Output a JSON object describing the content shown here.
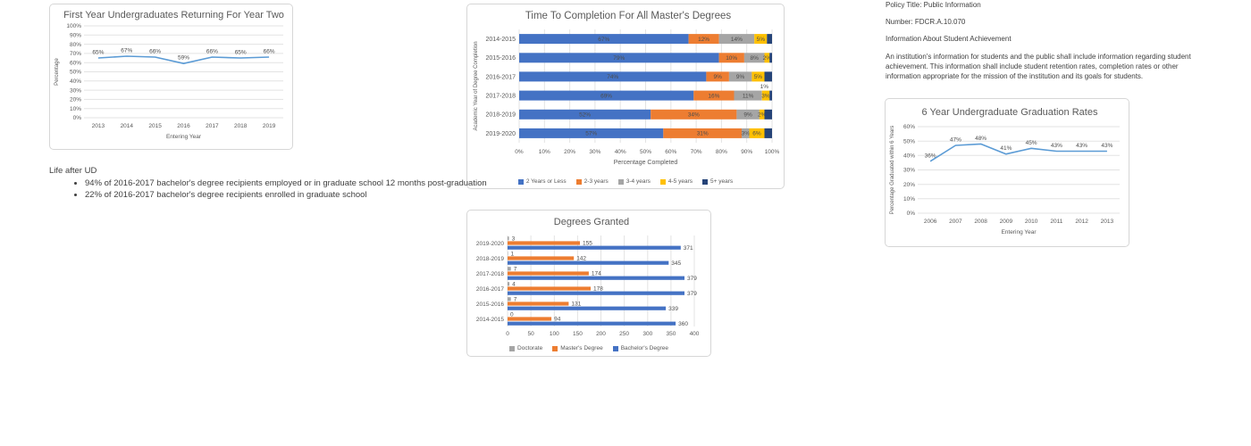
{
  "policy": {
    "title_line": "Policy Title: Public Information",
    "number_line": "Number: FDCR.A.10.070",
    "subject_line": "Information About Student Achievement",
    "paragraph": "An institution's information for students and the public shall include information regarding student achievement. This information shall include student retention rates, completion rates or other information appropriate for the mission of the institution and its goals for students."
  },
  "life_after": {
    "heading": "Life after UD",
    "bullets": [
      "94% of 2016-2017 bachelor's degree recipients employed or in graduate school 12 months post-graduation",
      "22% of 2016-2017 bachelor's degree recipients enrolled in graduate school"
    ]
  },
  "colors": {
    "line_blue": "#5B9BD5",
    "bar_blue": "#4472C4",
    "bar_orange": "#ED7D31",
    "bar_gray": "#A5A5A5",
    "bar_yellow": "#FFC000",
    "bar_navy": "#264478",
    "chart_text": "#595959",
    "border": "#d6d6d6"
  },
  "chart_data": [
    {
      "id": "retention",
      "type": "line",
      "title": "First Year Undergraduates Returning For Year Two",
      "xlabel": "Entering Year",
      "ylabel": "Percentage",
      "categories": [
        "2013",
        "2014",
        "2015",
        "2016",
        "2017",
        "2018",
        "2019"
      ],
      "values": [
        65,
        67,
        66,
        59,
        66,
        65,
        66
      ],
      "ylim": [
        0,
        100
      ],
      "ytick_step": 10,
      "unit": "%",
      "line_color": "#5B9BD5",
      "grid": true,
      "data_labels": true
    },
    {
      "id": "completion",
      "type": "stacked-bar-horizontal",
      "title": "Time To Completion For All Master's Degrees",
      "xlabel": "Percentage Completed",
      "ylabel": "Academic Year of Degree Completion",
      "categories": [
        "2014-2015",
        "2015-2016",
        "2016-2017",
        "2017-2018",
        "2018-2019",
        "2019-2020"
      ],
      "series": [
        {
          "name": "2 Years or Less",
          "color": "#4472C4",
          "values": [
            67,
            79,
            74,
            69,
            52,
            57
          ],
          "show_labels": true
        },
        {
          "name": "2-3 years",
          "color": "#ED7D31",
          "values": [
            12,
            10,
            9,
            16,
            34,
            31
          ],
          "show_labels": true
        },
        {
          "name": "3-4 years",
          "color": "#A5A5A5",
          "values": [
            14,
            8,
            9,
            11,
            9,
            3
          ],
          "show_labels": true
        },
        {
          "name": "4-5 years",
          "color": "#FFC000",
          "values": [
            5,
            2,
            5,
            3,
            2,
            6
          ],
          "show_labels": true
        },
        {
          "name": "5+ years",
          "color": "#264478",
          "values": [
            2,
            1,
            3,
            1,
            3,
            3
          ],
          "show_labels": false
        }
      ],
      "xlim": [
        0,
        100
      ],
      "xtick_step": 10,
      "unit": "%",
      "legend_position": "bottom",
      "grid": true,
      "annotation": {
        "text": "1%",
        "category": "2017-2018"
      }
    },
    {
      "id": "gradrates",
      "type": "line",
      "title": "6 Year Undergraduate Graduation Rates",
      "xlabel": "Entering Year",
      "ylabel": "Percentage Graduated within 6 Years",
      "categories": [
        "2006",
        "2007",
        "2008",
        "2009",
        "2010",
        "2011",
        "2012",
        "2013"
      ],
      "values": [
        36,
        47,
        48,
        41,
        45,
        43,
        43,
        43
      ],
      "ylim": [
        0,
        60
      ],
      "ytick_step": 10,
      "unit": "%",
      "line_color": "#5B9BD5",
      "grid": true,
      "data_labels": true
    },
    {
      "id": "degrees",
      "type": "grouped-bar-horizontal",
      "title": "Degrees Granted",
      "xlabel": "",
      "categories": [
        "2019-2020",
        "2018-2019",
        "2017-2018",
        "2016-2017",
        "2015-2016",
        "2014-2015"
      ],
      "series": [
        {
          "name": "Doctorate",
          "color": "#A5A5A5",
          "values": [
            3,
            1,
            7,
            4,
            7,
            0
          ]
        },
        {
          "name": "Master's Degree",
          "color": "#ED7D31",
          "values": [
            155,
            142,
            174,
            178,
            131,
            94
          ]
        },
        {
          "name": "Bachelor's Degree",
          "color": "#4472C4",
          "values": [
            371,
            345,
            379,
            379,
            339,
            360
          ]
        }
      ],
      "xlim": [
        0,
        400
      ],
      "xtick_step": 50,
      "unit": "",
      "legend_position": "bottom",
      "grid": true
    }
  ]
}
